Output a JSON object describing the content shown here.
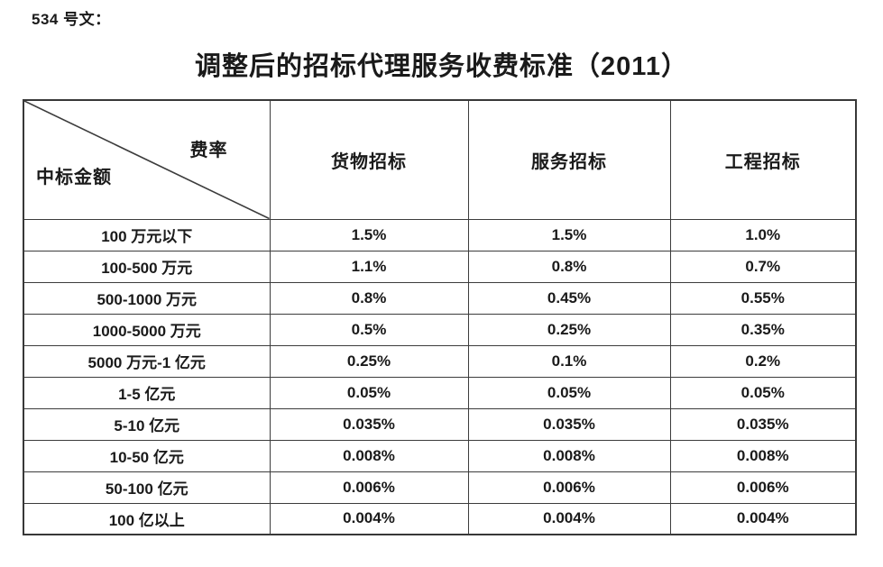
{
  "doc_label": "534 号文：",
  "title": "调整后的招标代理服务收费标准（2011）",
  "table": {
    "corner": {
      "top_right": "费率",
      "bottom_left": "中标金额"
    },
    "columns": [
      "货物招标",
      "服务招标",
      "工程招标"
    ],
    "rows": [
      {
        "label": "100 万元以下",
        "values": [
          "1.5%",
          "1.5%",
          "1.0%"
        ]
      },
      {
        "label": "100-500 万元",
        "values": [
          "1.1%",
          "0.8%",
          "0.7%"
        ]
      },
      {
        "label": "500-1000 万元",
        "values": [
          "0.8%",
          "0.45%",
          "0.55%"
        ]
      },
      {
        "label": "1000-5000 万元",
        "values": [
          "0.5%",
          "0.25%",
          "0.35%"
        ]
      },
      {
        "label": "5000 万元-1 亿元",
        "values": [
          "0.25%",
          "0.1%",
          "0.2%"
        ]
      },
      {
        "label": "1-5 亿元",
        "values": [
          "0.05%",
          "0.05%",
          "0.05%"
        ]
      },
      {
        "label": "5-10 亿元",
        "values": [
          "0.035%",
          "0.035%",
          "0.035%"
        ]
      },
      {
        "label": "10-50 亿元",
        "values": [
          "0.008%",
          "0.008%",
          "0.008%"
        ]
      },
      {
        "label": "50-100 亿元",
        "values": [
          "0.006%",
          "0.006%",
          "0.006%"
        ]
      },
      {
        "label": "100 亿以上",
        "values": [
          "0.004%",
          "0.004%",
          "0.004%"
        ]
      }
    ]
  },
  "colors": {
    "text": "#1a1a1a",
    "border": "#3c3c3c",
    "background": "#ffffff"
  }
}
